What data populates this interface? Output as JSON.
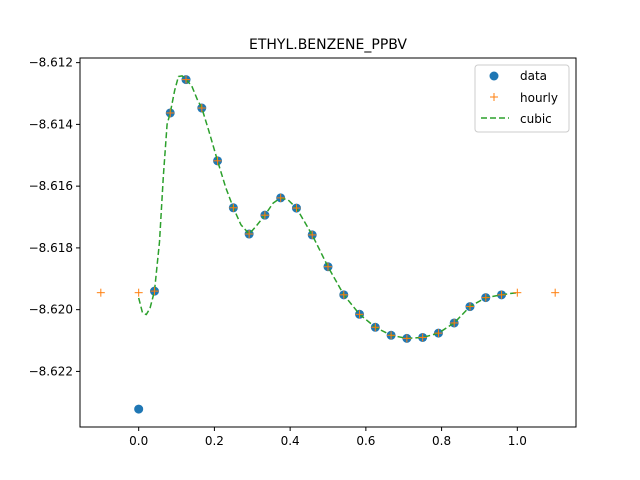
{
  "chart_data": {
    "type": "line",
    "title": "ETHYL.BENZENE_PPBV",
    "xlabel": "",
    "ylabel": "",
    "xlim": [
      -0.155,
      1.155
    ],
    "ylim": [
      -8.6238,
      -8.61185
    ],
    "xticks": [
      0.0,
      0.2,
      0.4,
      0.6,
      0.8,
      1.0
    ],
    "xtick_labels": [
      "0.0",
      "0.2",
      "0.4",
      "0.6",
      "0.8",
      "1.0"
    ],
    "yticks": [
      -8.622,
      -8.62,
      -8.618,
      -8.616,
      -8.614,
      -8.612
    ],
    "ytick_labels": [
      "−8.622",
      "−8.620",
      "−8.618",
      "−8.616",
      "−8.614",
      "−8.612"
    ],
    "grid": false,
    "legend_position": "top-right",
    "colors": {
      "data": "#1f77b4",
      "hourly": "#ff7f0e",
      "cubic": "#2ca02c"
    },
    "series": [
      {
        "name": "data",
        "style": "markers-circle",
        "x": [
          0.0,
          0.0417,
          0.0833,
          0.125,
          0.1667,
          0.2083,
          0.25,
          0.2917,
          0.3333,
          0.375,
          0.4167,
          0.4583,
          0.5,
          0.5417,
          0.5833,
          0.625,
          0.6667,
          0.7083,
          0.75,
          0.7917,
          0.8333,
          0.875,
          0.9167,
          0.9583
        ],
        "y": [
          -8.62322,
          -8.6194,
          -8.61363,
          -8.61255,
          -8.61347,
          -8.61518,
          -8.6167,
          -8.61755,
          -8.61694,
          -8.61638,
          -8.61671,
          -8.61758,
          -8.61861,
          -8.61952,
          -8.62015,
          -8.62057,
          -8.62083,
          -8.62093,
          -8.6209,
          -8.62076,
          -8.62043,
          -8.6199,
          -8.61961,
          -8.61952
        ]
      },
      {
        "name": "hourly",
        "style": "markers-plus",
        "x": [
          -0.1,
          0.0,
          0.0417,
          0.0833,
          0.125,
          0.1667,
          0.2083,
          0.25,
          0.2917,
          0.3333,
          0.375,
          0.4167,
          0.4583,
          0.5,
          0.5417,
          0.5833,
          0.625,
          0.6667,
          0.7083,
          0.75,
          0.7917,
          0.8333,
          0.875,
          0.9167,
          0.9583,
          1.0,
          1.1
        ],
        "y": [
          -8.61945,
          -8.61945,
          -8.6194,
          -8.61363,
          -8.61255,
          -8.61347,
          -8.61518,
          -8.6167,
          -8.61755,
          -8.61694,
          -8.61638,
          -8.61671,
          -8.61758,
          -8.61861,
          -8.61952,
          -8.62015,
          -8.62057,
          -8.62083,
          -8.62093,
          -8.6209,
          -8.62076,
          -8.62043,
          -8.6199,
          -8.61961,
          -8.61952,
          -8.61945,
          -8.61945
        ]
      },
      {
        "name": "cubic",
        "style": "dashed-line",
        "x": [
          0.0,
          0.01,
          0.02,
          0.03,
          0.0417,
          0.055,
          0.065,
          0.075,
          0.0833,
          0.095,
          0.105,
          0.115,
          0.125,
          0.14,
          0.155,
          0.1667,
          0.185,
          0.2083,
          0.23,
          0.25,
          0.27,
          0.2917,
          0.31,
          0.3333,
          0.355,
          0.375,
          0.395,
          0.4167,
          0.4583,
          0.5,
          0.5417,
          0.5833,
          0.625,
          0.6667,
          0.7083,
          0.75,
          0.7917,
          0.8333,
          0.875,
          0.9167,
          0.9583,
          0.98,
          1.0
        ],
        "y": [
          -8.61962,
          -8.6201,
          -8.62016,
          -8.61995,
          -8.6194,
          -8.6178,
          -8.6157,
          -8.614,
          -8.61363,
          -8.6129,
          -8.61245,
          -8.61243,
          -8.61255,
          -8.61275,
          -8.6132,
          -8.61347,
          -8.6142,
          -8.61518,
          -8.61605,
          -8.6167,
          -8.61725,
          -8.61755,
          -8.6173,
          -8.61694,
          -8.61655,
          -8.61638,
          -8.61645,
          -8.61671,
          -8.61758,
          -8.61861,
          -8.61952,
          -8.62015,
          -8.62057,
          -8.62083,
          -8.62093,
          -8.6209,
          -8.62076,
          -8.62043,
          -8.6199,
          -8.61961,
          -8.61952,
          -8.61948,
          -8.61945
        ]
      }
    ]
  }
}
